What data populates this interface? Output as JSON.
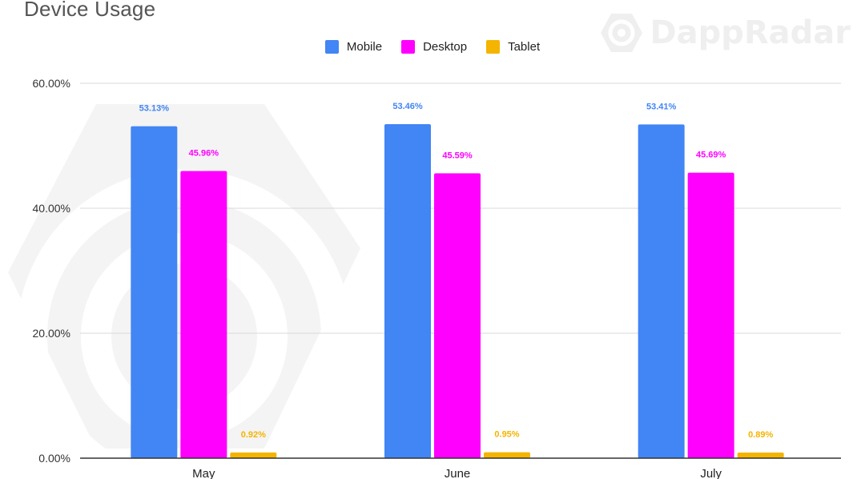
{
  "page": {
    "title": "Device Usage",
    "watermark": "DappRadar"
  },
  "colors": {
    "mobile": "#4285f4",
    "desktop": "#ff00ff",
    "tablet": "#f4b400",
    "grid": "#d9d9d9",
    "axis": "#333333"
  },
  "chart_data": {
    "type": "bar",
    "title": "Device Usage",
    "categories": [
      "May",
      "June",
      "July"
    ],
    "series": [
      {
        "name": "Mobile",
        "values": [
          53.13,
          53.46,
          53.41
        ],
        "labels": [
          "53.13%",
          "53.46%",
          "53.41%"
        ]
      },
      {
        "name": "Desktop",
        "values": [
          45.96,
          45.59,
          45.69
        ],
        "labels": [
          "45.96%",
          "45.59%",
          "45.69%"
        ]
      },
      {
        "name": "Tablet",
        "values": [
          0.92,
          0.95,
          0.89
        ],
        "labels": [
          "0.92%",
          "0.95%",
          "0.89%"
        ]
      }
    ],
    "ylim": [
      0,
      60
    ],
    "yticks": [
      "0.00%",
      "20.00%",
      "40.00%",
      "60.00%"
    ],
    "ytick_values": [
      0,
      20,
      40,
      60
    ],
    "grid": true,
    "legend_position": "top-center"
  }
}
